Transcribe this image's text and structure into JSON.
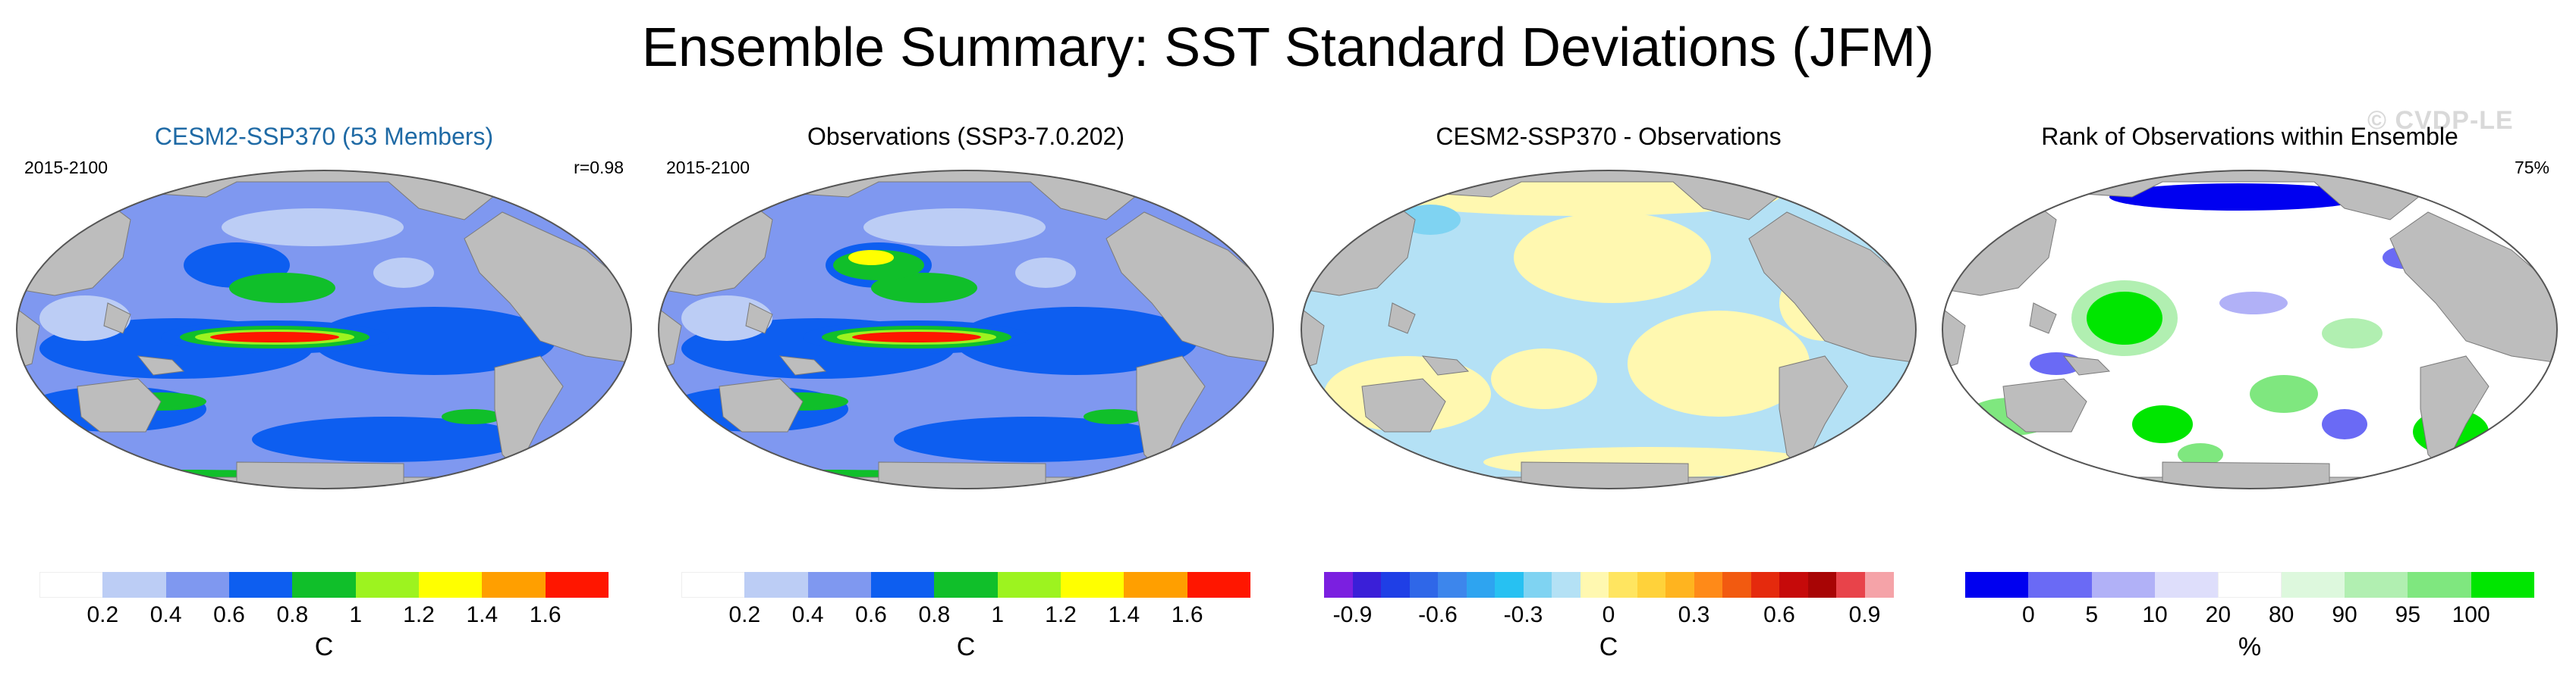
{
  "title": "Ensemble Summary: SST Standard Deviations (JFM)",
  "watermark": "© CVDP-LE",
  "colors": {
    "land": "#bdbdbd",
    "ocean_bg": "#ffffff"
  },
  "panels": [
    {
      "id": "cesm",
      "title": "CESM2-SSP370 (53 Members)",
      "title_color": "#1f6aa5",
      "left_label": "2015-2100",
      "right_label": "r=0.98",
      "unit": "C",
      "scale": {
        "colors": [
          "#ffffff",
          "#bccdf5",
          "#7f98f0",
          "#0d5ef0",
          "#10bf2a",
          "#9df31f",
          "#ffff00",
          "#ff9f00",
          "#ff1600"
        ],
        "labels": [
          "0.2",
          "0.4",
          "0.6",
          "0.8",
          "1",
          "1.2",
          "1.4",
          "1.6"
        ]
      }
    },
    {
      "id": "obs",
      "title": "Observations (SSP3-7.0.202)",
      "title_color": "#000000",
      "left_label": "2015-2100",
      "right_label": "",
      "unit": "C",
      "scale": {
        "colors": [
          "#ffffff",
          "#bccdf5",
          "#7f98f0",
          "#0d5ef0",
          "#10bf2a",
          "#9df31f",
          "#ffff00",
          "#ff9f00",
          "#ff1600"
        ],
        "labels": [
          "0.2",
          "0.4",
          "0.6",
          "0.8",
          "1",
          "1.2",
          "1.4",
          "1.6"
        ]
      }
    },
    {
      "id": "diff",
      "title": "CESM2-SSP370 - Observations",
      "title_color": "#000000",
      "left_label": "",
      "right_label": "",
      "unit": "C",
      "scale": {
        "colors": [
          "#7b1fe0",
          "#3a1fd8",
          "#1f3fe6",
          "#2f67e8",
          "#3d86ec",
          "#2ea4f0",
          "#27c1f2",
          "#7fd3f2",
          "#b4e1f5",
          "#fff8b0",
          "#ffe560",
          "#ffd23a",
          "#ffb41f",
          "#ff8a18",
          "#f25a10",
          "#e52a0d",
          "#c60a0a",
          "#a80505",
          "#e8434a",
          "#f5a3a8"
        ],
        "labels": [
          "-0.9",
          "-0.6",
          "-0.3",
          "0",
          "0.3",
          "0.6",
          "0.9"
        ]
      }
    },
    {
      "id": "rank",
      "title": "Rank of Observations within Ensemble",
      "title_color": "#000000",
      "left_label": "",
      "right_label": "75%",
      "unit": "%",
      "scale": {
        "colors": [
          "#0000f0",
          "#6a6af5",
          "#b1b1f7",
          "#dedefb",
          "#ffffff",
          "#ddf8dd",
          "#b1efb1",
          "#7fe77f",
          "#00e600"
        ],
        "labels": [
          "0",
          "5",
          "10",
          "20",
          "80",
          "90",
          "95",
          "100"
        ]
      }
    }
  ]
}
